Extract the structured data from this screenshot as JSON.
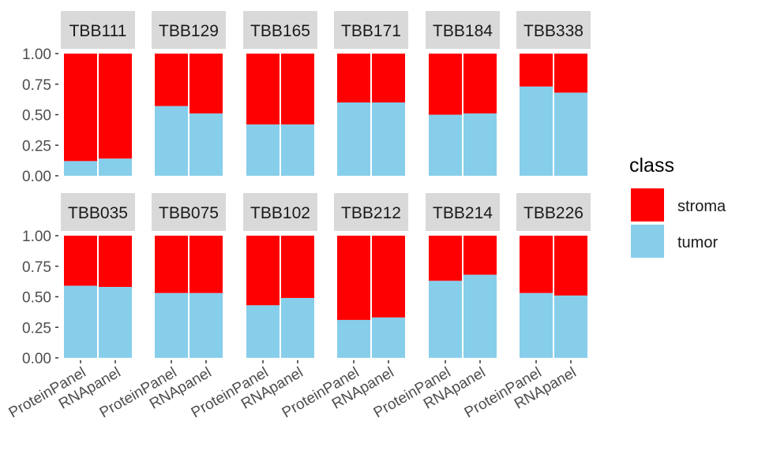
{
  "chart_data": {
    "type": "bar",
    "stacked": true,
    "categories": [
      "ProteinPanel",
      "RNApanel"
    ],
    "ylim": [
      0,
      1
    ],
    "yticks": [
      "0.00",
      "0.25",
      "0.50",
      "0.75",
      "1.00"
    ],
    "legend": {
      "title": "class",
      "placement": "right",
      "entries": [
        {
          "label": "stroma",
          "color": "#ff0000"
        },
        {
          "label": "tumor",
          "color": "#87ceeb"
        }
      ]
    },
    "grid": false,
    "panels": [
      {
        "id": "TBB111",
        "tumor": [
          0.12,
          0.14
        ]
      },
      {
        "id": "TBB129",
        "tumor": [
          0.57,
          0.51
        ]
      },
      {
        "id": "TBB165",
        "tumor": [
          0.42,
          0.42
        ]
      },
      {
        "id": "TBB171",
        "tumor": [
          0.6,
          0.6
        ]
      },
      {
        "id": "TBB184",
        "tumor": [
          0.5,
          0.51
        ]
      },
      {
        "id": "TBB338",
        "tumor": [
          0.73,
          0.68
        ]
      },
      {
        "id": "TBB035",
        "tumor": [
          0.59,
          0.58
        ]
      },
      {
        "id": "TBB075",
        "tumor": [
          0.53,
          0.53
        ]
      },
      {
        "id": "TBB102",
        "tumor": [
          0.43,
          0.49
        ]
      },
      {
        "id": "TBB212",
        "tumor": [
          0.31,
          0.33
        ]
      },
      {
        "id": "TBB214",
        "tumor": [
          0.63,
          0.68
        ]
      },
      {
        "id": "TBB226",
        "tumor": [
          0.53,
          0.51
        ]
      }
    ]
  }
}
